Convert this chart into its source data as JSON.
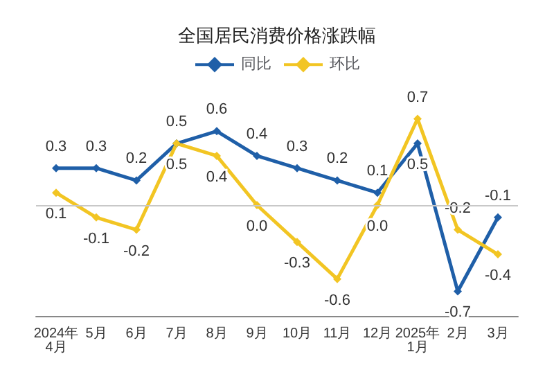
{
  "chart_data": {
    "type": "line",
    "title": "全国居民消费价格涨跌幅",
    "categories": [
      "2024年\n4月",
      "5月",
      "6月",
      "7月",
      "8月",
      "9月",
      "10月",
      "11月",
      "12月",
      "2025年\n1月",
      "2月",
      "3月"
    ],
    "series": [
      {
        "name": "同比",
        "color": "#1f5fa8",
        "values": [
          0.3,
          0.3,
          0.2,
          0.5,
          0.6,
          0.4,
          0.3,
          0.2,
          0.1,
          0.5,
          -0.7,
          -0.1
        ],
        "value_labels": [
          "0.3",
          "0.3",
          "0.2",
          "0.5",
          "0.6",
          "0.4",
          "0.3",
          "0.2",
          "0.1",
          "0.5",
          "-0.7",
          "-0.1"
        ]
      },
      {
        "name": "环比",
        "color": "#f2c523",
        "values": [
          0.1,
          -0.1,
          -0.2,
          0.5,
          0.4,
          0.0,
          -0.3,
          -0.6,
          0.0,
          0.7,
          -0.2,
          -0.4
        ],
        "value_labels": [
          "0.1",
          "-0.1",
          "-0.2",
          "0.5",
          "0.4",
          "0.0",
          "-0.3",
          "-0.6",
          "0.0",
          "0.7",
          "-0.2",
          "-0.4"
        ]
      }
    ],
    "legend": "top",
    "marker": "diamond",
    "grid": false,
    "ref_lines": [
      {
        "axis": "y",
        "value": 0,
        "color": "#c8c8c8"
      }
    ]
  }
}
